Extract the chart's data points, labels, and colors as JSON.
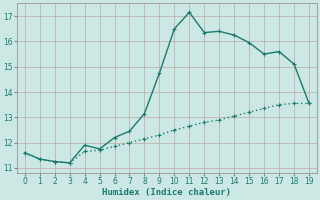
{
  "xlabel": "Humidex (Indice chaleur)",
  "x": [
    0,
    1,
    2,
    3,
    4,
    5,
    6,
    7,
    8,
    9,
    10,
    11,
    12,
    13,
    14,
    15,
    16,
    17,
    18,
    19
  ],
  "y_upper": [
    11.6,
    11.35,
    11.25,
    11.2,
    11.9,
    11.75,
    12.2,
    12.45,
    13.15,
    14.75,
    16.5,
    17.15,
    16.35,
    16.4,
    16.25,
    15.95,
    15.5,
    15.6,
    15.1,
    13.55
  ],
  "y_lower": [
    11.6,
    11.35,
    11.25,
    11.2,
    11.65,
    11.7,
    11.85,
    12.0,
    12.15,
    12.3,
    12.5,
    12.65,
    12.8,
    12.9,
    13.05,
    13.2,
    13.35,
    13.5,
    13.55,
    13.55
  ],
  "line_color": "#1a7a6e",
  "bg_color": "#cce8e4",
  "grid_color": "#c0a8a8",
  "xlim": [
    -0.5,
    19.5
  ],
  "ylim": [
    10.8,
    17.5
  ],
  "xticks": [
    0,
    1,
    2,
    3,
    4,
    5,
    6,
    7,
    8,
    9,
    10,
    11,
    12,
    13,
    14,
    15,
    16,
    17,
    18,
    19
  ],
  "yticks": [
    11,
    12,
    13,
    14,
    15,
    16,
    17
  ],
  "marker_size": 3.0,
  "line_width": 1.0
}
